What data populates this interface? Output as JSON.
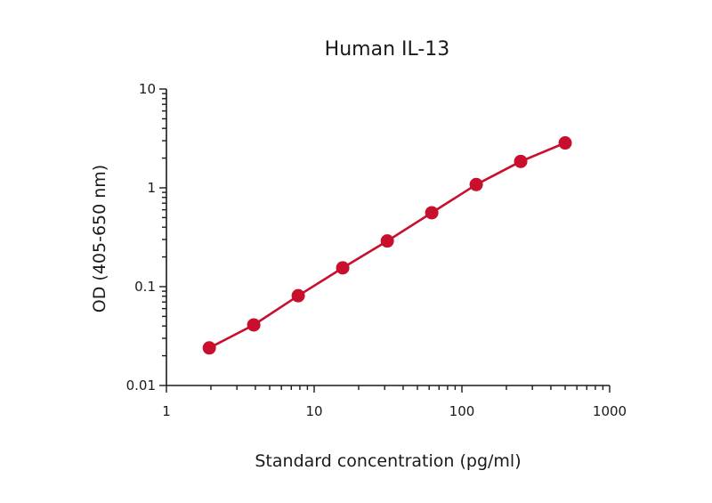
{
  "chart_data": {
    "type": "line",
    "title": "Human IL-13",
    "xlabel": "Standard concentration (pg/ml)",
    "ylabel": "OD (405-650 nm)",
    "x_scale": "log",
    "y_scale": "log",
    "xlim": [
      1,
      1000
    ],
    "ylim": [
      0.01,
      10
    ],
    "x_ticks": [
      1,
      10,
      100,
      1000
    ],
    "x_tick_labels": [
      "1",
      "10",
      "100",
      "1000"
    ],
    "y_ticks": [
      0.01,
      0.1,
      1,
      10
    ],
    "y_tick_labels": [
      "0.01",
      "0.1",
      "1",
      "10"
    ],
    "grid": false,
    "series": [
      {
        "color": "#c8102e",
        "x": [
          1.95,
          3.9,
          7.8,
          15.6,
          31.25,
          62.5,
          125,
          250,
          500
        ],
        "y": [
          0.024,
          0.041,
          0.081,
          0.155,
          0.29,
          0.56,
          1.08,
          1.85,
          2.85
        ]
      }
    ]
  }
}
